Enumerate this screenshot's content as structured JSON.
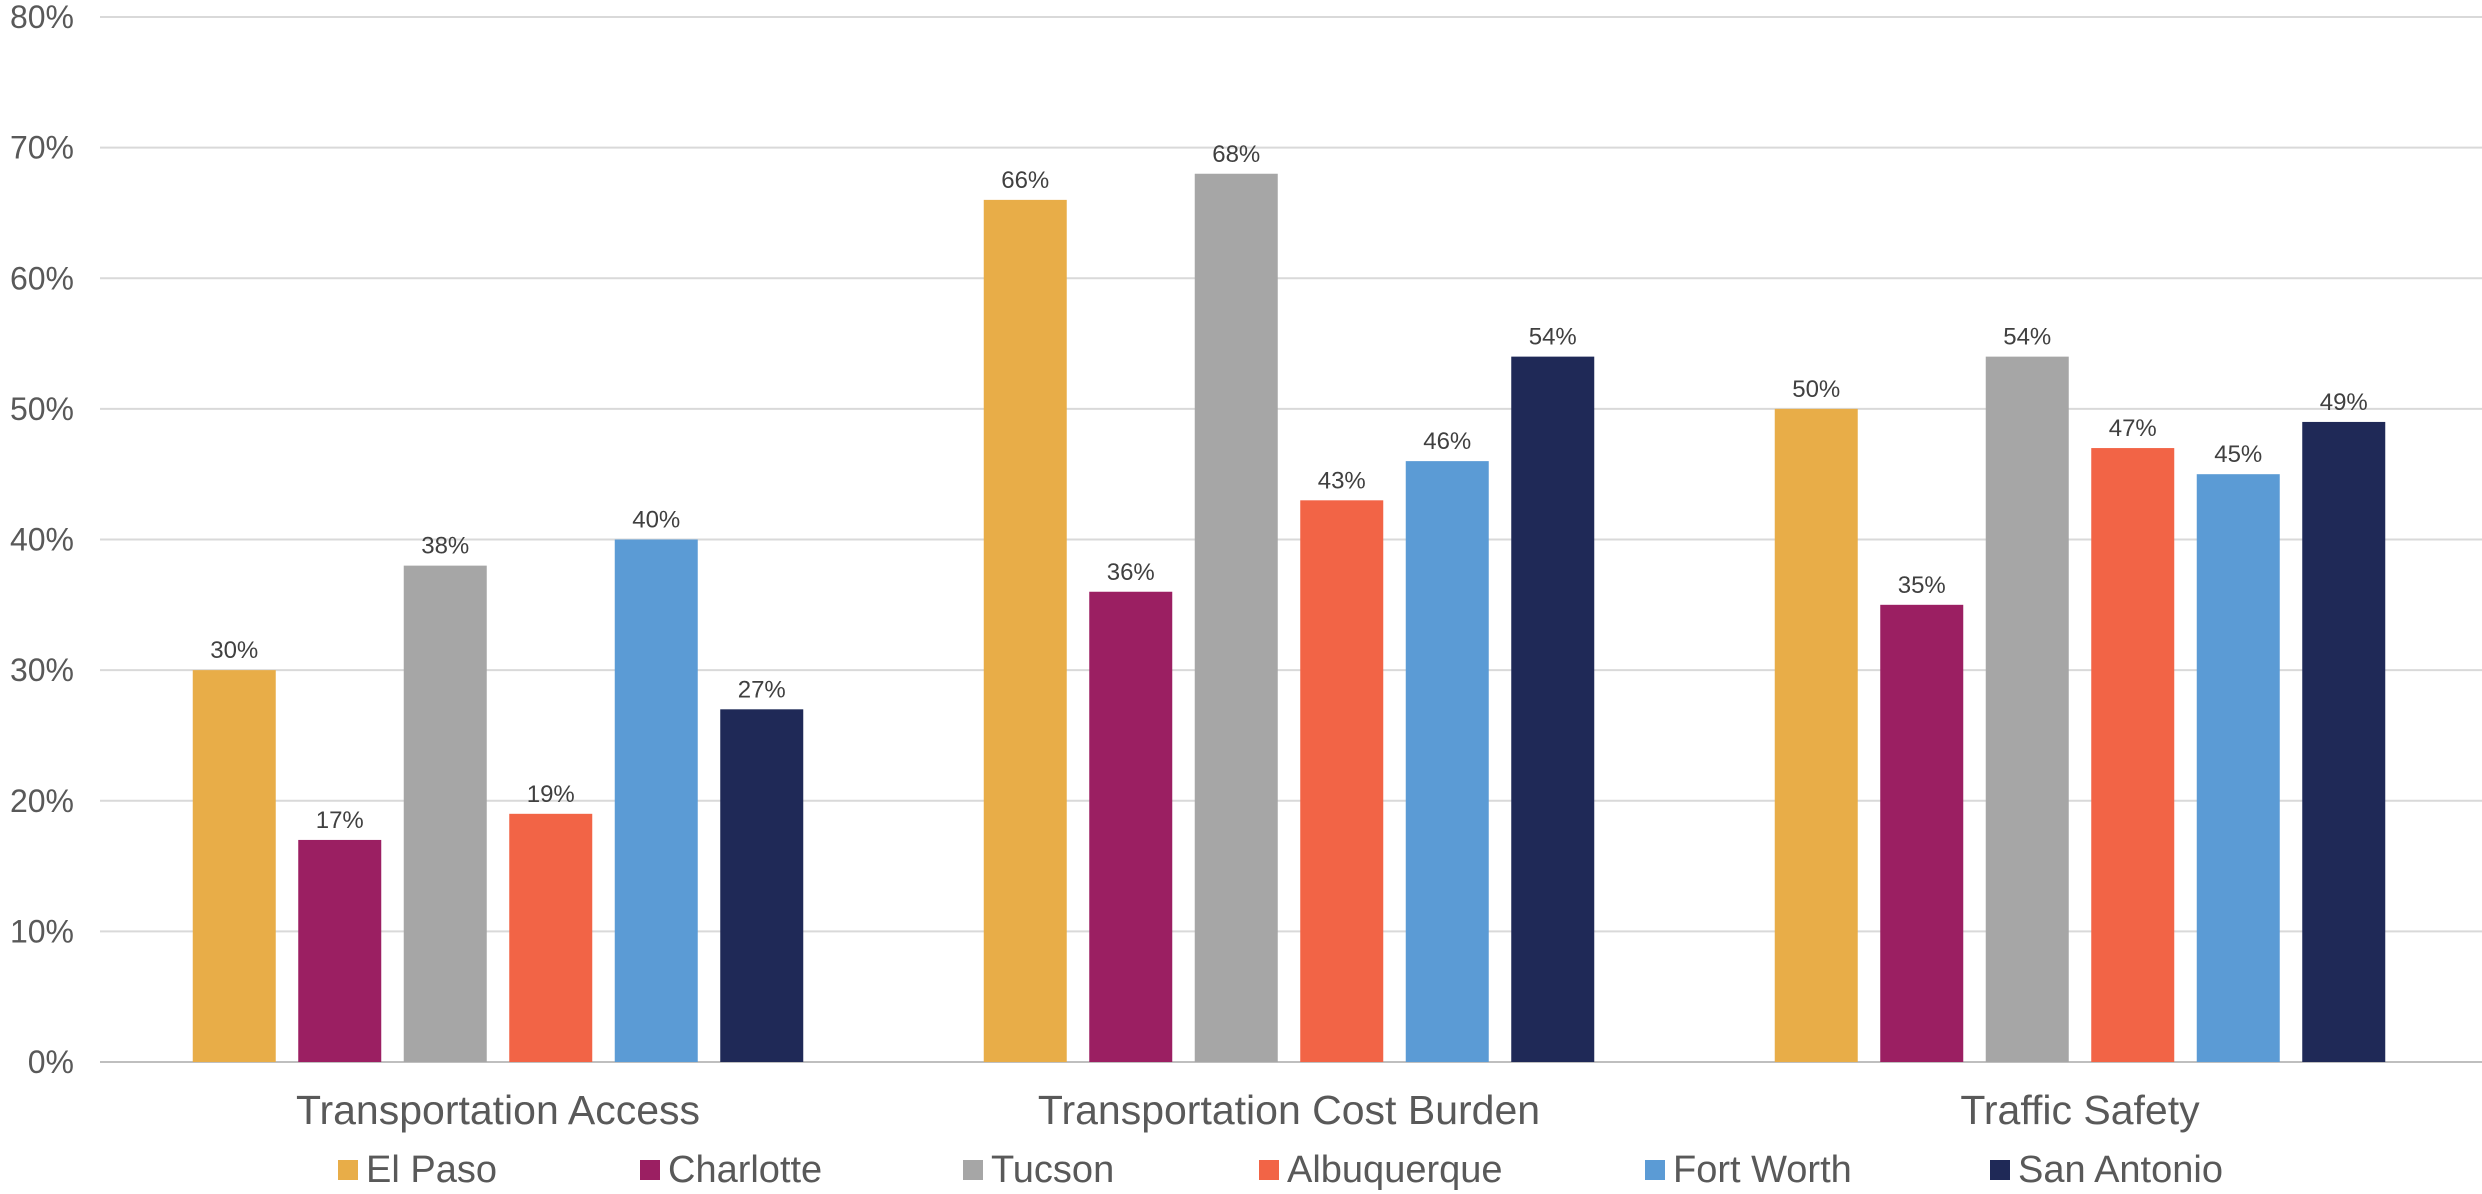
{
  "chart_data": {
    "type": "bar",
    "title": "",
    "xlabel": "",
    "ylabel": "",
    "ylim": [
      0,
      80
    ],
    "y_ticks": [
      "0%",
      "10%",
      "20%",
      "30%",
      "40%",
      "50%",
      "60%",
      "70%",
      "80%"
    ],
    "y_tick_values": [
      0,
      10,
      20,
      30,
      40,
      50,
      60,
      70,
      80
    ],
    "grid": true,
    "legend_position": "bottom",
    "categories": [
      "Transportation Access",
      "Transportation Cost Burden",
      "Traffic Safety"
    ],
    "series": [
      {
        "name": "El Paso",
        "color": "#E8AD48",
        "values": [
          30,
          66,
          50
        ],
        "labels": [
          "30%",
          "66%",
          "50%"
        ]
      },
      {
        "name": "Charlotte",
        "color": "#9B1F62",
        "values": [
          17,
          36,
          35
        ],
        "labels": [
          "17%",
          "36%",
          "35%"
        ]
      },
      {
        "name": "Tucson",
        "color": "#A6A6A6",
        "values": [
          38,
          68,
          54
        ],
        "labels": [
          "38%",
          "68%",
          "54%"
        ]
      },
      {
        "name": "Albuquerque",
        "color": "#F26446",
        "values": [
          19,
          43,
          47
        ],
        "labels": [
          "19%",
          "43%",
          "47%"
        ]
      },
      {
        "name": "Fort Worth",
        "color": "#5B9BD5",
        "values": [
          40,
          46,
          45
        ],
        "labels": [
          "40%",
          "46%",
          "45%"
        ]
      },
      {
        "name": "San Antonio",
        "color": "#1F2957",
        "values": [
          27,
          54,
          49
        ],
        "labels": [
          "27%",
          "54%",
          "49%"
        ]
      }
    ]
  }
}
